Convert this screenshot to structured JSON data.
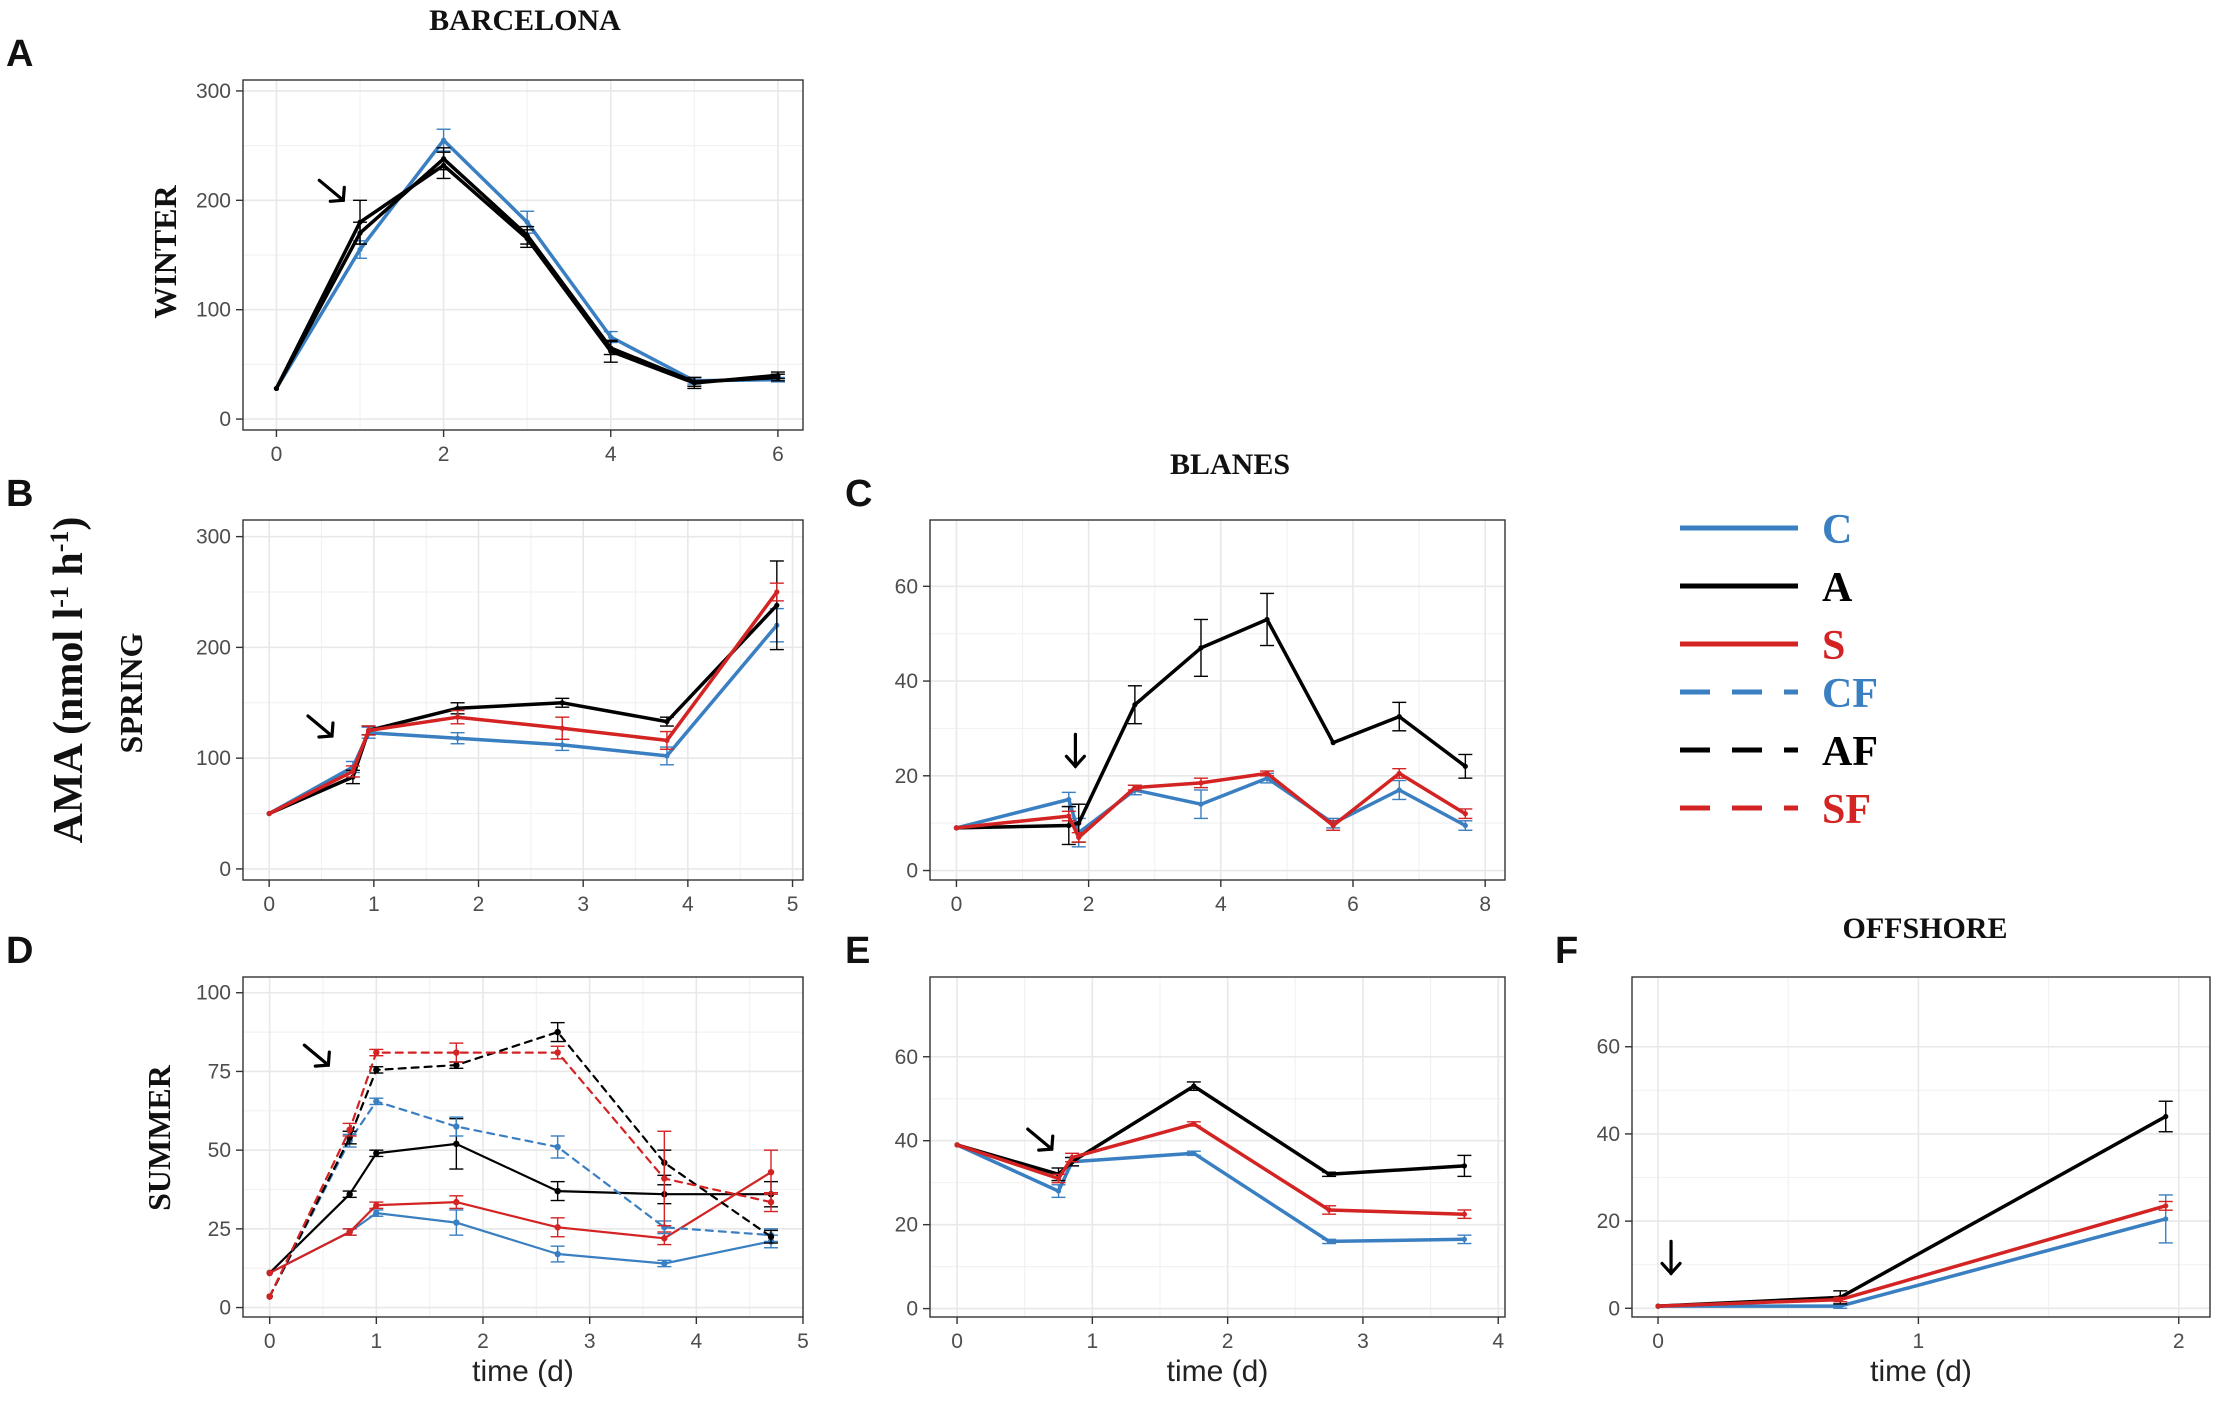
{
  "figure": {
    "y_axis_title": "AMA (nmol l-1 h-1)",
    "site_titles": [
      "BARCELONA",
      "BLANES",
      "OFFSHORE"
    ],
    "row_labels": [
      "WINTER",
      "SPRING",
      "SUMMER"
    ]
  },
  "legend": [
    {
      "label": "C",
      "color": "#3A7FC1",
      "dash": false
    },
    {
      "label": "A",
      "color": "#000000",
      "dash": false
    },
    {
      "label": "S",
      "color": "#D42323",
      "dash": false
    },
    {
      "label": "CF",
      "color": "#3A7FC1",
      "dash": true
    },
    {
      "label": "AF",
      "color": "#000000",
      "dash": true
    },
    {
      "label": "SF",
      "color": "#D42323",
      "dash": true
    }
  ],
  "colors": {
    "C": "#3A7FC1",
    "A": "#000000",
    "S": "#D42323",
    "grid": "#E8E8E8",
    "text": "#4D4D4D"
  },
  "chart_data": [
    {
      "id": "A",
      "type": "line",
      "site": "BARCELONA",
      "season": "WINTER",
      "xlim": [
        -0.4,
        6.3
      ],
      "ylim": [
        -10,
        310
      ],
      "xticks": [
        0,
        2,
        4,
        6
      ],
      "yticks": [
        0,
        100,
        200,
        300
      ],
      "xlabel": "",
      "arrow_at": [
        0.8,
        200
      ],
      "series": [
        {
          "name": "C",
          "dash": false,
          "width": 3.5,
          "x": [
            0,
            1,
            2,
            3,
            4,
            5,
            6
          ],
          "y": [
            28,
            155,
            255,
            180,
            75,
            35,
            36
          ],
          "err": [
            0,
            8,
            10,
            10,
            5,
            3,
            2
          ]
        },
        {
          "name": "A",
          "dash": false,
          "width": 3.5,
          "x": [
            0,
            1,
            2,
            3,
            4,
            5,
            6
          ],
          "y": [
            28,
            170,
            238,
            168,
            65,
            34,
            38
          ],
          "err": [
            0,
            10,
            10,
            8,
            6,
            4,
            3
          ]
        },
        {
          "name": "A",
          "dash": false,
          "width": 3.5,
          "x": [
            0,
            1,
            2,
            3,
            4,
            5,
            6
          ],
          "y": [
            28,
            180,
            232,
            165,
            62,
            33,
            40
          ],
          "err": [
            0,
            20,
            12,
            8,
            10,
            5,
            3
          ]
        }
      ]
    },
    {
      "id": "B",
      "type": "line",
      "site": "BARCELONA",
      "season": "SPRING",
      "xlim": [
        -0.25,
        5.1
      ],
      "ylim": [
        -10,
        315
      ],
      "xticks": [
        0,
        1,
        2,
        3,
        4,
        5
      ],
      "yticks": [
        0,
        100,
        200,
        300
      ],
      "xlabel": "",
      "arrow_at": [
        0.6,
        120
      ],
      "series": [
        {
          "name": "C",
          "dash": false,
          "width": 3.5,
          "x": [
            0,
            0.8,
            0.95,
            1.8,
            2.8,
            3.8,
            4.85
          ],
          "y": [
            50,
            92,
            123,
            118,
            112,
            102,
            220
          ],
          "err": [
            0,
            5,
            5,
            5,
            5,
            8,
            15
          ]
        },
        {
          "name": "A",
          "dash": false,
          "width": 3.5,
          "x": [
            0,
            0.8,
            0.95,
            1.8,
            2.8,
            3.8,
            4.85
          ],
          "y": [
            50,
            83,
            125,
            145,
            150,
            133,
            238
          ],
          "err": [
            0,
            6,
            4,
            5,
            4,
            4,
            40
          ]
        },
        {
          "name": "S",
          "dash": false,
          "width": 3.5,
          "x": [
            0,
            0.8,
            0.95,
            1.8,
            2.8,
            3.8,
            4.85
          ],
          "y": [
            50,
            88,
            125,
            137,
            127,
            116,
            250
          ],
          "err": [
            0,
            5,
            4,
            6,
            10,
            8,
            8
          ]
        }
      ]
    },
    {
      "id": "C",
      "type": "line",
      "site": "BLANES",
      "season": "SPRING",
      "xlim": [
        -0.4,
        8.3
      ],
      "ylim": [
        -2,
        74
      ],
      "xticks": [
        0,
        2,
        4,
        6,
        8
      ],
      "yticks": [
        0,
        20,
        40,
        60
      ],
      "xlabel": "",
      "arrow_at": [
        1.8,
        22
      ],
      "series": [
        {
          "name": "C",
          "dash": false,
          "width": 3.5,
          "x": [
            0,
            1.7,
            1.85,
            2.7,
            3.7,
            4.7,
            5.7,
            6.7,
            7.7
          ],
          "y": [
            9,
            15,
            8,
            17,
            14,
            19.5,
            10,
            17,
            9.5
          ],
          "err": [
            0,
            1.5,
            3,
            1,
            3,
            1,
            1,
            2,
            1
          ]
        },
        {
          "name": "A",
          "dash": false,
          "width": 3.5,
          "x": [
            0,
            1.7,
            1.85,
            2.7,
            3.7,
            4.7,
            5.7,
            6.7,
            7.7
          ],
          "y": [
            9,
            9.5,
            10,
            35,
            47,
            53,
            27,
            32.5,
            22
          ],
          "err": [
            0,
            4,
            4,
            4,
            6,
            5.5,
            0,
            3,
            2.5
          ]
        },
        {
          "name": "S",
          "dash": false,
          "width": 3.5,
          "x": [
            0,
            1.7,
            1.85,
            2.7,
            3.7,
            4.7,
            5.7,
            6.7,
            7.7
          ],
          "y": [
            9,
            11.5,
            7,
            17.5,
            18.5,
            20.5,
            9.5,
            20.5,
            12
          ],
          "err": [
            0,
            1,
            1,
            0.5,
            1,
            0.5,
            1,
            1,
            1
          ]
        }
      ]
    },
    {
      "id": "D",
      "type": "line",
      "site": "BARCELONA",
      "season": "SUMMER",
      "xlim": [
        -0.25,
        5.0
      ],
      "ylim": [
        -3,
        105
      ],
      "xticks": [
        0,
        1,
        2,
        3,
        4,
        5
      ],
      "yticks": [
        0,
        25,
        50,
        75,
        100
      ],
      "xlabel": "time (d)",
      "arrow_at": [
        0.55,
        77
      ],
      "series": [
        {
          "name": "C",
          "dash": false,
          "width": 2.2,
          "x": [
            0,
            0.75,
            1,
            1.75,
            2.7,
            3.7,
            4.7
          ],
          "y": [
            11,
            24,
            30,
            27,
            17,
            14,
            21
          ],
          "err": [
            0,
            1,
            1,
            4,
            2.5,
            1,
            2
          ]
        },
        {
          "name": "A",
          "dash": false,
          "width": 2.2,
          "x": [
            0,
            0.75,
            1,
            1.75,
            2.7,
            3.7,
            4.7
          ],
          "y": [
            11,
            36,
            49,
            52,
            37,
            36,
            36
          ],
          "err": [
            0,
            1,
            1,
            8,
            3,
            3,
            4
          ]
        },
        {
          "name": "S",
          "dash": false,
          "width": 2.2,
          "x": [
            0,
            0.75,
            1,
            1.75,
            2.7,
            3.7,
            4.7
          ],
          "y": [
            11,
            24,
            32.5,
            33.5,
            25.5,
            22,
            43
          ],
          "err": [
            0,
            1,
            1,
            2,
            3,
            2,
            7
          ]
        },
        {
          "name": "CF",
          "dash": true,
          "width": 2.2,
          "x": [
            0,
            0.75,
            1,
            1.75,
            2.7,
            3.7,
            4.7
          ],
          "y": [
            3.5,
            53,
            65.5,
            57.5,
            51,
            25.5,
            23
          ],
          "err": [
            0,
            2,
            1,
            3,
            3.5,
            2,
            2
          ]
        },
        {
          "name": "AF",
          "dash": true,
          "width": 2.2,
          "x": [
            0,
            0.75,
            1,
            1.75,
            2.7,
            3.7,
            4.7
          ],
          "y": [
            3.5,
            54,
            75.5,
            77,
            87.5,
            46,
            22.5
          ],
          "err": [
            0,
            2,
            1,
            1,
            3,
            4,
            2
          ]
        },
        {
          "name": "SF",
          "dash": true,
          "width": 2.2,
          "x": [
            0,
            0.75,
            1,
            1.75,
            2.7,
            3.7,
            4.7
          ],
          "y": [
            3.5,
            56.5,
            81,
            81,
            81,
            41,
            33.5
          ],
          "err": [
            0,
            2,
            1,
            3,
            2,
            15,
            3
          ]
        }
      ]
    },
    {
      "id": "E",
      "type": "line",
      "site": "BLANES",
      "season": "SUMMER",
      "xlim": [
        -0.2,
        4.05
      ],
      "ylim": [
        -2,
        79
      ],
      "xticks": [
        0,
        1,
        2,
        3,
        4
      ],
      "yticks": [
        0,
        20,
        40,
        60
      ],
      "xlabel": "time (d)",
      "arrow_at": [
        0.7,
        38
      ],
      "series": [
        {
          "name": "C",
          "dash": false,
          "width": 3.5,
          "x": [
            0,
            0.75,
            0.85,
            1.75,
            2.75,
            3.75
          ],
          "y": [
            39,
            28,
            35,
            37,
            16,
            16.5
          ],
          "err": [
            0,
            1.5,
            1,
            0.5,
            0.5,
            1
          ]
        },
        {
          "name": "A",
          "dash": false,
          "width": 3.5,
          "x": [
            0,
            0.75,
            0.85,
            1.75,
            2.75,
            3.75
          ],
          "y": [
            39,
            32,
            35,
            53,
            32,
            34
          ],
          "err": [
            0,
            1.5,
            1,
            1,
            0.5,
            2.5
          ]
        },
        {
          "name": "S",
          "dash": false,
          "width": 3.5,
          "x": [
            0,
            0.75,
            0.85,
            1.75,
            2.75,
            3.75
          ],
          "y": [
            39,
            31,
            36,
            44,
            23.5,
            22.5
          ],
          "err": [
            0,
            1,
            1,
            0.5,
            1,
            1
          ]
        }
      ]
    },
    {
      "id": "F",
      "type": "line",
      "site": "OFFSHORE",
      "season": "SUMMER",
      "xlim": [
        -0.1,
        2.12
      ],
      "ylim": [
        -2,
        76
      ],
      "xticks": [
        0,
        1,
        2
      ],
      "yticks": [
        0,
        20,
        40,
        60
      ],
      "xlabel": "time (d)",
      "arrow_at": [
        0.05,
        8
      ],
      "series": [
        {
          "name": "C",
          "dash": false,
          "width": 3.5,
          "x": [
            0,
            0.7,
            1.95
          ],
          "y": [
            0.5,
            0.5,
            20.5
          ],
          "err": [
            0,
            0.5,
            5.5
          ]
        },
        {
          "name": "A",
          "dash": false,
          "width": 3.5,
          "x": [
            0,
            0.7,
            1.95
          ],
          "y": [
            0.5,
            2.5,
            44
          ],
          "err": [
            0,
            1.5,
            3.5
          ]
        },
        {
          "name": "S",
          "dash": false,
          "width": 3.5,
          "x": [
            0,
            0.7,
            1.95
          ],
          "y": [
            0.5,
            2,
            23.5
          ],
          "err": [
            0,
            0.5,
            1
          ]
        }
      ]
    }
  ]
}
